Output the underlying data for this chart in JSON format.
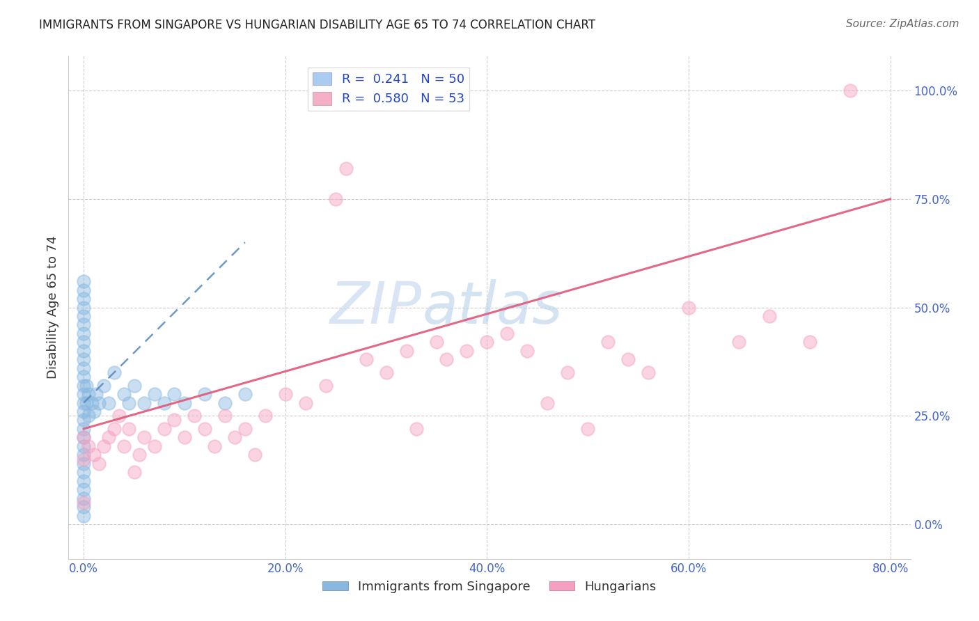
{
  "title": "IMMIGRANTS FROM SINGAPORE VS HUNGARIAN DISABILITY AGE 65 TO 74 CORRELATION CHART",
  "source": "Source: ZipAtlas.com",
  "xlim": [
    -1.5,
    82
  ],
  "ylim": [
    -8,
    108
  ],
  "ylabel": "Disability Age 65 to 74",
  "watermark_zip": "ZIP",
  "watermark_atlas": "atlas",
  "legend_r1": "R =  0.241",
  "legend_n1": "N = 50",
  "legend_r2": "R =  0.580",
  "legend_n2": "N = 53",
  "legend_color1": "#aaccf0",
  "legend_color2": "#f5b0c5",
  "sg_scatter_color": "#88b8e0",
  "hu_scatter_color": "#f5a0c0",
  "sg_line_color": "#5588bb",
  "hu_line_color": "#e05878",
  "ytick_color": "#4466cc",
  "xtick_color": "#4466cc",
  "ytick_labels": [
    "0.0%",
    "25.0%",
    "50.0%",
    "75.0%",
    "100.0%"
  ],
  "ytick_vals": [
    0,
    25,
    50,
    75,
    100
  ],
  "xtick_labels": [
    "0.0%",
    "20.0%",
    "40.0%",
    "60.0%",
    "80.0%"
  ],
  "xtick_vals": [
    0,
    20,
    40,
    60,
    80
  ],
  "sg_bottom_label": "Immigrants from Singapore",
  "hu_bottom_label": "Hungarians",
  "singapore_points_x": [
    0.0,
    0.0,
    0.0,
    0.0,
    0.0,
    0.0,
    0.0,
    0.0,
    0.0,
    0.0,
    0.0,
    0.0,
    0.0,
    0.0,
    0.0,
    0.0,
    0.0,
    0.0,
    0.0,
    0.0,
    0.0,
    0.0,
    0.0,
    0.0,
    0.0,
    0.0,
    0.0,
    0.0,
    0.3,
    0.3,
    0.5,
    0.5,
    0.8,
    1.0,
    1.2,
    1.5,
    2.0,
    2.5,
    3.0,
    4.0,
    4.5,
    5.0,
    6.0,
    7.0,
    8.0,
    9.0,
    10.0,
    12.0,
    14.0,
    16.0
  ],
  "singapore_points_y": [
    2,
    4,
    6,
    8,
    10,
    12,
    14,
    16,
    18,
    20,
    22,
    24,
    26,
    28,
    30,
    32,
    34,
    36,
    38,
    40,
    42,
    44,
    46,
    48,
    50,
    52,
    54,
    56,
    28,
    32,
    25,
    30,
    28,
    26,
    30,
    28,
    32,
    28,
    35,
    30,
    28,
    32,
    28,
    30,
    28,
    30,
    28,
    30,
    28,
    30
  ],
  "hungarian_points_x": [
    0.0,
    0.0,
    0.0,
    0.5,
    1.0,
    1.5,
    2.0,
    2.5,
    3.0,
    3.5,
    4.0,
    4.5,
    5.0,
    5.5,
    6.0,
    7.0,
    8.0,
    9.0,
    10.0,
    11.0,
    12.0,
    13.0,
    14.0,
    15.0,
    16.0,
    17.0,
    18.0,
    20.0,
    22.0,
    24.0,
    25.0,
    26.0,
    28.0,
    30.0,
    32.0,
    33.0,
    35.0,
    36.0,
    38.0,
    40.0,
    42.0,
    44.0,
    46.0,
    48.0,
    50.0,
    52.0,
    54.0,
    56.0,
    60.0,
    65.0,
    68.0,
    72.0,
    76.0
  ],
  "hungarian_points_y": [
    5,
    15,
    20,
    18,
    16,
    14,
    18,
    20,
    22,
    25,
    18,
    22,
    12,
    16,
    20,
    18,
    22,
    24,
    20,
    25,
    22,
    18,
    25,
    20,
    22,
    16,
    25,
    30,
    28,
    32,
    75,
    82,
    38,
    35,
    40,
    22,
    42,
    38,
    40,
    42,
    44,
    40,
    28,
    35,
    22,
    42,
    38,
    35,
    50,
    42,
    48,
    42,
    100
  ],
  "hu_line_x": [
    0,
    80
  ],
  "hu_line_y": [
    22,
    75
  ],
  "sg_line_x": [
    0,
    16
  ],
  "sg_line_y": [
    28,
    65
  ]
}
